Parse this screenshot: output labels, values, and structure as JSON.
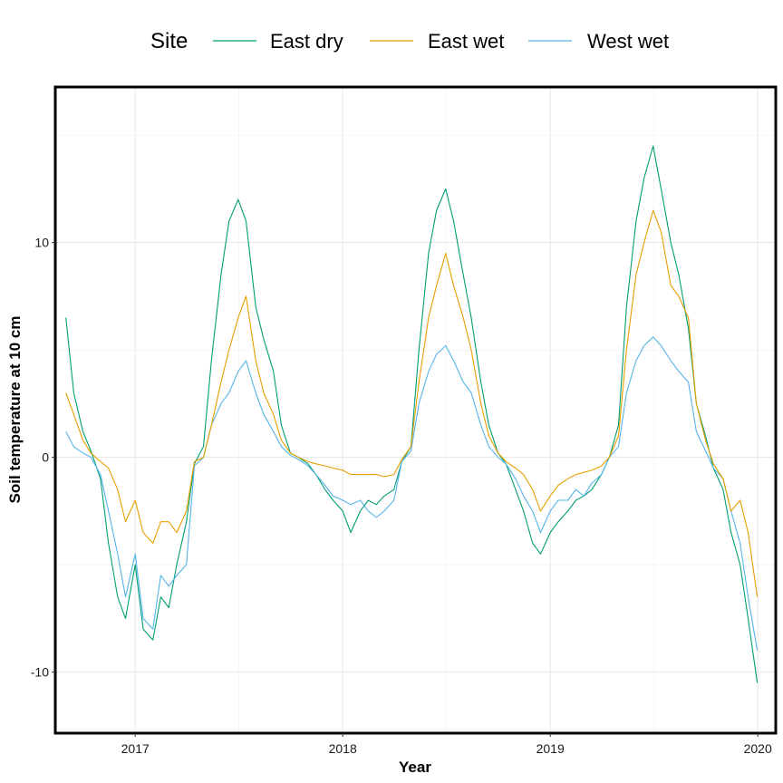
{
  "chart_data": {
    "type": "line",
    "title": "",
    "xlabel": "Year",
    "ylabel": "Soil temperature at 10 cm",
    "x_tick_labels": [
      "2017",
      "2018",
      "2019",
      "2020"
    ],
    "x_ticks": [
      "2017-01-01",
      "2018-01-01",
      "2019-01-01",
      "2020-01-01"
    ],
    "y_tick_labels": [
      "-10",
      "0",
      "10"
    ],
    "y_ticks": [
      -10,
      0,
      10
    ],
    "xlim": [
      "2016-08-15",
      "2020-01-31"
    ],
    "ylim": [
      -12.8,
      17.2
    ],
    "grid": true,
    "legend": {
      "title": "Site",
      "position": "top"
    },
    "colors": {
      "East dry": "#009E73",
      "East wet": "#E69F00",
      "West wet": "#56B4E9"
    },
    "series": [
      {
        "name": "East dry",
        "points": [
          [
            "2016-09-01",
            6.5
          ],
          [
            "2016-09-15",
            3.0
          ],
          [
            "2016-10-01",
            1.2
          ],
          [
            "2016-10-15",
            0.3
          ],
          [
            "2016-11-01",
            -1.0
          ],
          [
            "2016-11-15",
            -4.0
          ],
          [
            "2016-12-01",
            -6.5
          ],
          [
            "2016-12-15",
            -7.5
          ],
          [
            "2017-01-01",
            -5.0
          ],
          [
            "2017-01-15",
            -8.0
          ],
          [
            "2017-02-01",
            -8.5
          ],
          [
            "2017-02-15",
            -6.5
          ],
          [
            "2017-03-01",
            -7.0
          ],
          [
            "2017-03-15",
            -5.0
          ],
          [
            "2017-04-01",
            -3.0
          ],
          [
            "2017-04-15",
            -0.3
          ],
          [
            "2017-05-01",
            0.5
          ],
          [
            "2017-05-15",
            4.5
          ],
          [
            "2017-06-01",
            8.5
          ],
          [
            "2017-06-15",
            11.0
          ],
          [
            "2017-07-01",
            12.0
          ],
          [
            "2017-07-15",
            11.0
          ],
          [
            "2017-08-01",
            7.0
          ],
          [
            "2017-08-15",
            5.5
          ],
          [
            "2017-09-01",
            4.0
          ],
          [
            "2017-09-15",
            1.5
          ],
          [
            "2017-10-01",
            0.2
          ],
          [
            "2017-10-15",
            0.0
          ],
          [
            "2017-11-01",
            -0.3
          ],
          [
            "2017-11-15",
            -0.8
          ],
          [
            "2017-12-01",
            -1.5
          ],
          [
            "2017-12-15",
            -2.0
          ],
          [
            "2018-01-01",
            -2.5
          ],
          [
            "2018-01-15",
            -3.5
          ],
          [
            "2018-02-01",
            -2.5
          ],
          [
            "2018-02-15",
            -2.0
          ],
          [
            "2018-03-01",
            -2.2
          ],
          [
            "2018-03-15",
            -1.8
          ],
          [
            "2018-04-01",
            -1.5
          ],
          [
            "2018-04-15",
            -0.2
          ],
          [
            "2018-05-01",
            0.5
          ],
          [
            "2018-05-15",
            5.0
          ],
          [
            "2018-06-01",
            9.5
          ],
          [
            "2018-06-15",
            11.5
          ],
          [
            "2018-07-01",
            12.5
          ],
          [
            "2018-07-15",
            11.0
          ],
          [
            "2018-08-01",
            8.5
          ],
          [
            "2018-08-15",
            6.5
          ],
          [
            "2018-09-01",
            3.5
          ],
          [
            "2018-09-15",
            1.5
          ],
          [
            "2018-10-01",
            0.2
          ],
          [
            "2018-10-15",
            -0.3
          ],
          [
            "2018-11-01",
            -1.5
          ],
          [
            "2018-11-15",
            -2.5
          ],
          [
            "2018-12-01",
            -4.0
          ],
          [
            "2018-12-15",
            -4.5
          ],
          [
            "2019-01-01",
            -3.5
          ],
          [
            "2019-01-15",
            -3.0
          ],
          [
            "2019-02-01",
            -2.5
          ],
          [
            "2019-02-15",
            -2.0
          ],
          [
            "2019-03-01",
            -1.8
          ],
          [
            "2019-03-15",
            -1.5
          ],
          [
            "2019-04-01",
            -0.8
          ],
          [
            "2019-04-15",
            0.0
          ],
          [
            "2019-05-01",
            1.5
          ],
          [
            "2019-05-15",
            7.0
          ],
          [
            "2019-06-01",
            11.0
          ],
          [
            "2019-06-15",
            13.0
          ],
          [
            "2019-07-01",
            14.5
          ],
          [
            "2019-07-15",
            12.5
          ],
          [
            "2019-08-01",
            10.0
          ],
          [
            "2019-08-15",
            8.5
          ],
          [
            "2019-09-01",
            6.0
          ],
          [
            "2019-09-15",
            2.5
          ],
          [
            "2019-10-01",
            1.0
          ],
          [
            "2019-10-15",
            -0.5
          ],
          [
            "2019-11-01",
            -1.5
          ],
          [
            "2019-11-15",
            -3.5
          ],
          [
            "2019-12-01",
            -5.0
          ],
          [
            "2019-12-15",
            -7.5
          ],
          [
            "2019-12-31",
            -10.5
          ]
        ]
      },
      {
        "name": "East wet",
        "points": [
          [
            "2016-09-01",
            3.0
          ],
          [
            "2016-09-15",
            2.0
          ],
          [
            "2016-10-01",
            0.8
          ],
          [
            "2016-10-15",
            0.2
          ],
          [
            "2016-11-01",
            -0.2
          ],
          [
            "2016-11-15",
            -0.5
          ],
          [
            "2016-12-01",
            -1.5
          ],
          [
            "2016-12-15",
            -3.0
          ],
          [
            "2017-01-01",
            -2.0
          ],
          [
            "2017-01-15",
            -3.5
          ],
          [
            "2017-02-01",
            -4.0
          ],
          [
            "2017-02-15",
            -3.0
          ],
          [
            "2017-03-01",
            -3.0
          ],
          [
            "2017-03-15",
            -3.5
          ],
          [
            "2017-04-01",
            -2.5
          ],
          [
            "2017-04-15",
            -0.2
          ],
          [
            "2017-05-01",
            0.0
          ],
          [
            "2017-05-15",
            1.5
          ],
          [
            "2017-06-01",
            3.5
          ],
          [
            "2017-06-15",
            5.0
          ],
          [
            "2017-07-01",
            6.5
          ],
          [
            "2017-07-15",
            7.5
          ],
          [
            "2017-08-01",
            4.5
          ],
          [
            "2017-08-15",
            3.0
          ],
          [
            "2017-09-01",
            2.0
          ],
          [
            "2017-09-15",
            0.8
          ],
          [
            "2017-10-01",
            0.2
          ],
          [
            "2017-10-15",
            0.0
          ],
          [
            "2017-11-01",
            -0.2
          ],
          [
            "2017-11-15",
            -0.3
          ],
          [
            "2017-12-01",
            -0.4
          ],
          [
            "2017-12-15",
            -0.5
          ],
          [
            "2018-01-01",
            -0.6
          ],
          [
            "2018-01-15",
            -0.8
          ],
          [
            "2018-02-01",
            -0.8
          ],
          [
            "2018-02-15",
            -0.8
          ],
          [
            "2018-03-01",
            -0.8
          ],
          [
            "2018-03-15",
            -0.9
          ],
          [
            "2018-04-01",
            -0.8
          ],
          [
            "2018-04-15",
            -0.1
          ],
          [
            "2018-05-01",
            0.5
          ],
          [
            "2018-05-15",
            3.5
          ],
          [
            "2018-06-01",
            6.5
          ],
          [
            "2018-06-15",
            8.0
          ],
          [
            "2018-07-01",
            9.5
          ],
          [
            "2018-07-15",
            8.0
          ],
          [
            "2018-08-01",
            6.5
          ],
          [
            "2018-08-15",
            5.0
          ],
          [
            "2018-09-01",
            2.5
          ],
          [
            "2018-09-15",
            1.0
          ],
          [
            "2018-10-01",
            0.2
          ],
          [
            "2018-10-15",
            -0.2
          ],
          [
            "2018-11-01",
            -0.5
          ],
          [
            "2018-11-15",
            -0.8
          ],
          [
            "2018-12-01",
            -1.5
          ],
          [
            "2018-12-15",
            -2.5
          ],
          [
            "2019-01-01",
            -1.8
          ],
          [
            "2019-01-15",
            -1.3
          ],
          [
            "2019-02-01",
            -1.0
          ],
          [
            "2019-02-15",
            -0.8
          ],
          [
            "2019-03-01",
            -0.7
          ],
          [
            "2019-03-15",
            -0.6
          ],
          [
            "2019-04-01",
            -0.4
          ],
          [
            "2019-04-15",
            0.0
          ],
          [
            "2019-05-01",
            1.0
          ],
          [
            "2019-05-15",
            5.0
          ],
          [
            "2019-06-01",
            8.5
          ],
          [
            "2019-06-15",
            10.0
          ],
          [
            "2019-07-01",
            11.5
          ],
          [
            "2019-07-15",
            10.5
          ],
          [
            "2019-08-01",
            8.0
          ],
          [
            "2019-08-15",
            7.5
          ],
          [
            "2019-09-01",
            6.5
          ],
          [
            "2019-09-15",
            2.5
          ],
          [
            "2019-10-01",
            0.8
          ],
          [
            "2019-10-15",
            -0.3
          ],
          [
            "2019-11-01",
            -1.0
          ],
          [
            "2019-11-15",
            -2.5
          ],
          [
            "2019-12-01",
            -2.0
          ],
          [
            "2019-12-15",
            -3.5
          ],
          [
            "2019-12-31",
            -6.5
          ]
        ]
      },
      {
        "name": "West wet",
        "points": [
          [
            "2016-09-01",
            1.2
          ],
          [
            "2016-09-15",
            0.5
          ],
          [
            "2016-10-01",
            0.2
          ],
          [
            "2016-10-15",
            0.0
          ],
          [
            "2016-11-01",
            -0.8
          ],
          [
            "2016-11-15",
            -2.5
          ],
          [
            "2016-12-01",
            -4.5
          ],
          [
            "2016-12-15",
            -6.5
          ],
          [
            "2017-01-01",
            -4.5
          ],
          [
            "2017-01-15",
            -7.5
          ],
          [
            "2017-02-01",
            -8.0
          ],
          [
            "2017-02-15",
            -5.5
          ],
          [
            "2017-03-01",
            -6.0
          ],
          [
            "2017-03-15",
            -5.5
          ],
          [
            "2017-04-01",
            -5.0
          ],
          [
            "2017-04-15",
            -0.4
          ],
          [
            "2017-05-01",
            0.0
          ],
          [
            "2017-05-15",
            1.5
          ],
          [
            "2017-06-01",
            2.5
          ],
          [
            "2017-06-15",
            3.0
          ],
          [
            "2017-07-01",
            4.0
          ],
          [
            "2017-07-15",
            4.5
          ],
          [
            "2017-08-01",
            3.0
          ],
          [
            "2017-08-15",
            2.0
          ],
          [
            "2017-09-01",
            1.2
          ],
          [
            "2017-09-15",
            0.5
          ],
          [
            "2017-10-01",
            0.1
          ],
          [
            "2017-10-15",
            -0.1
          ],
          [
            "2017-11-01",
            -0.4
          ],
          [
            "2017-11-15",
            -0.8
          ],
          [
            "2017-12-01",
            -1.3
          ],
          [
            "2017-12-15",
            -1.8
          ],
          [
            "2018-01-01",
            -2.0
          ],
          [
            "2018-01-15",
            -2.2
          ],
          [
            "2018-02-01",
            -2.0
          ],
          [
            "2018-02-15",
            -2.5
          ],
          [
            "2018-03-01",
            -2.8
          ],
          [
            "2018-03-15",
            -2.5
          ],
          [
            "2018-04-01",
            -2.0
          ],
          [
            "2018-04-15",
            -0.2
          ],
          [
            "2018-05-01",
            0.3
          ],
          [
            "2018-05-15",
            2.5
          ],
          [
            "2018-06-01",
            4.0
          ],
          [
            "2018-06-15",
            4.8
          ],
          [
            "2018-07-01",
            5.2
          ],
          [
            "2018-07-15",
            4.5
          ],
          [
            "2018-08-01",
            3.5
          ],
          [
            "2018-08-15",
            3.0
          ],
          [
            "2018-09-01",
            1.5
          ],
          [
            "2018-09-15",
            0.5
          ],
          [
            "2018-10-01",
            0.0
          ],
          [
            "2018-10-15",
            -0.3
          ],
          [
            "2018-11-01",
            -1.0
          ],
          [
            "2018-11-15",
            -1.8
          ],
          [
            "2018-12-01",
            -2.5
          ],
          [
            "2018-12-15",
            -3.5
          ],
          [
            "2019-01-01",
            -2.5
          ],
          [
            "2019-01-15",
            -2.0
          ],
          [
            "2019-02-01",
            -2.0
          ],
          [
            "2019-02-15",
            -1.5
          ],
          [
            "2019-03-01",
            -1.8
          ],
          [
            "2019-03-15",
            -1.2
          ],
          [
            "2019-04-01",
            -0.8
          ],
          [
            "2019-04-15",
            0.0
          ],
          [
            "2019-05-01",
            0.5
          ],
          [
            "2019-05-15",
            3.0
          ],
          [
            "2019-06-01",
            4.5
          ],
          [
            "2019-06-15",
            5.2
          ],
          [
            "2019-07-01",
            5.6
          ],
          [
            "2019-07-15",
            5.2
          ],
          [
            "2019-08-01",
            4.5
          ],
          [
            "2019-08-15",
            4.0
          ],
          [
            "2019-09-01",
            3.5
          ],
          [
            "2019-09-15",
            1.2
          ],
          [
            "2019-10-01",
            0.3
          ],
          [
            "2019-10-15",
            -0.5
          ],
          [
            "2019-11-01",
            -1.0
          ],
          [
            "2019-11-15",
            -2.5
          ],
          [
            "2019-12-01",
            -4.0
          ],
          [
            "2019-12-15",
            -6.5
          ],
          [
            "2019-12-31",
            -9.0
          ]
        ]
      }
    ]
  }
}
